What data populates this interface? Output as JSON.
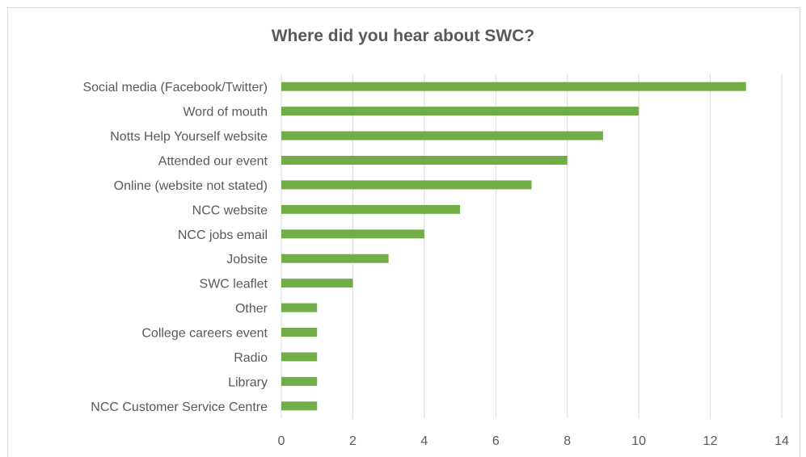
{
  "chart_data": {
    "type": "bar",
    "orientation": "horizontal",
    "title": "Where did you hear about SWC?",
    "categories": [
      "Social media (Facebook/Twitter)",
      "Word of mouth",
      "Notts Help Yourself website",
      "Attended our event",
      "Online (website not stated)",
      "NCC website",
      "NCC jobs email",
      "Jobsite",
      "SWC leaflet",
      "Other",
      "College careers event",
      "Radio",
      "Library",
      "NCC Customer Service Centre"
    ],
    "values": [
      13,
      10,
      9,
      8,
      7,
      5,
      4,
      3,
      2,
      1,
      1,
      1,
      1,
      1
    ],
    "xlim": [
      0,
      14
    ],
    "xticks": [
      "0",
      "2",
      "4",
      "6",
      "8",
      "10",
      "12",
      "14"
    ],
    "grid": true,
    "bar_color": "#70ad47",
    "grid_color": "#d9d9d9"
  }
}
